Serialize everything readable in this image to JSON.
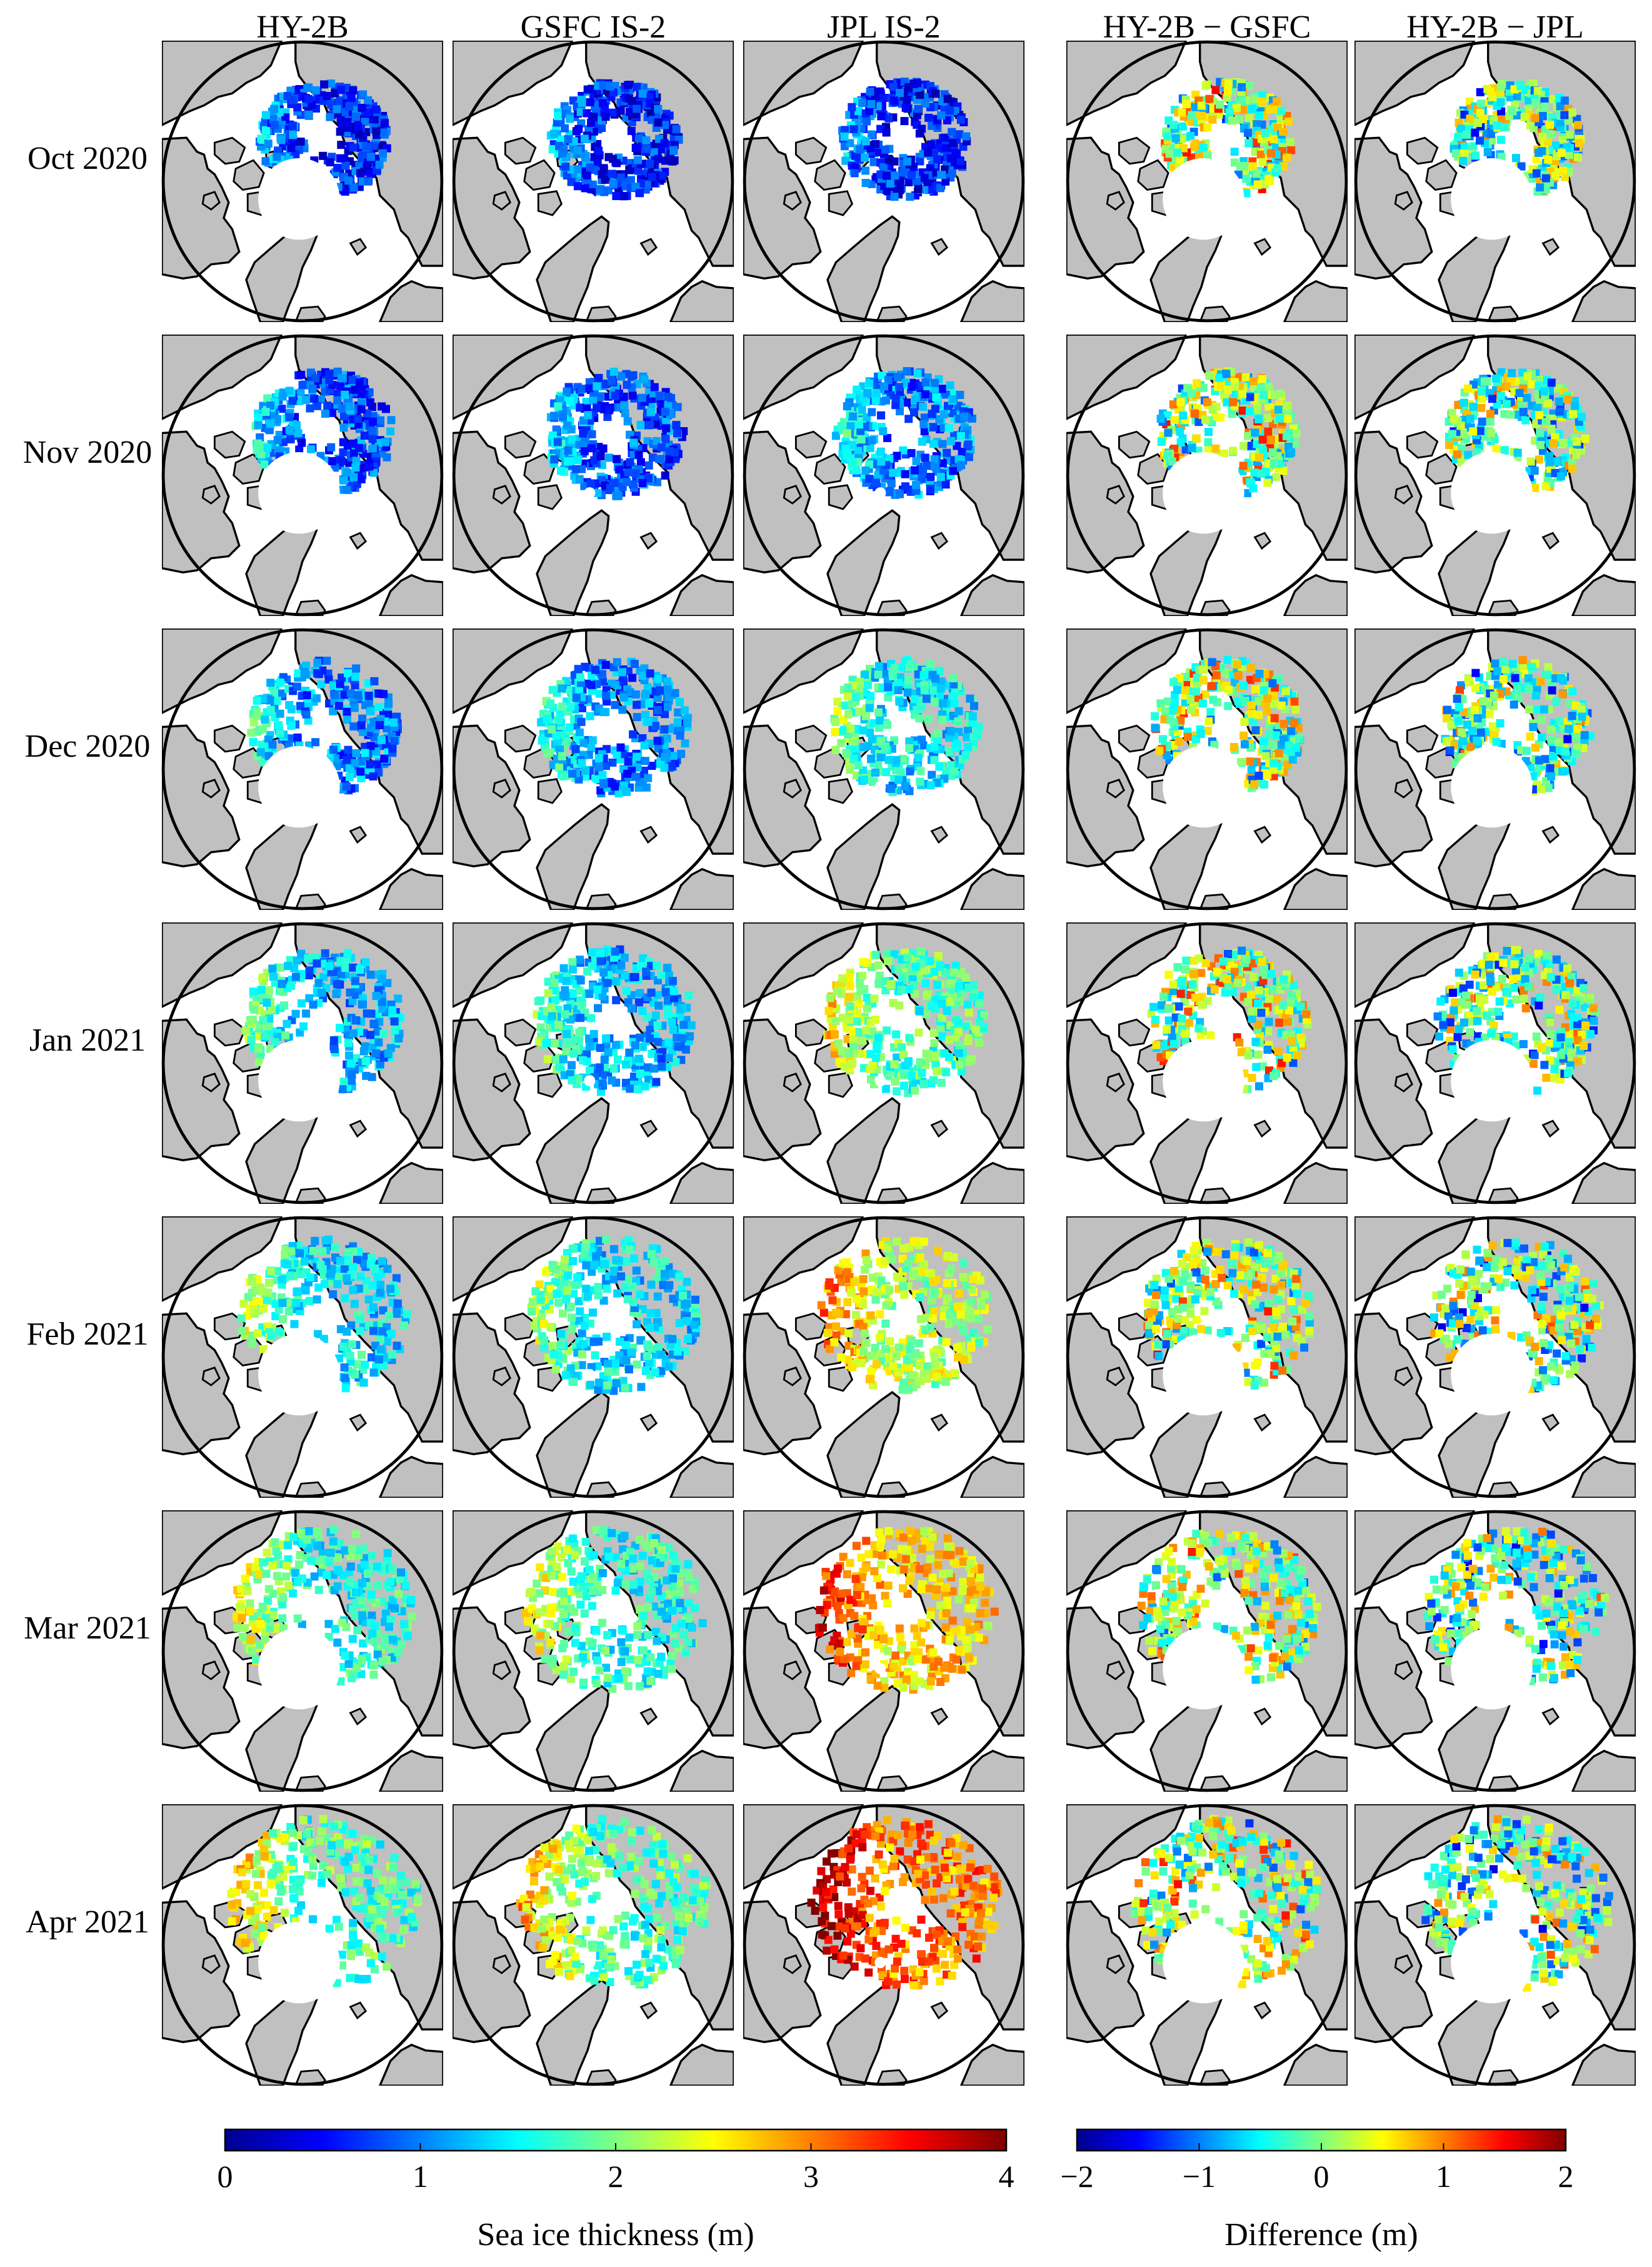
{
  "figure": {
    "columns": [
      "HY-2B",
      "GSFC IS-2",
      "JPL IS-2",
      "HY-2B − GSFC",
      "HY-2B − JPL"
    ],
    "rows": [
      "Oct 2020",
      "Nov 2020",
      "Dec 2020",
      "Jan 2021",
      "Feb 2021",
      "Mar 2021",
      "Apr 2021"
    ]
  },
  "colorbars": {
    "thickness": {
      "label": "Sea ice thickness (m)",
      "ticks": [
        "0",
        "1",
        "2",
        "3",
        "4"
      ],
      "range": [
        0,
        4
      ]
    },
    "difference": {
      "label": "Difference (m)",
      "ticks": [
        "−2",
        "−1",
        "0",
        "1",
        "2"
      ],
      "range": [
        -2,
        2
      ]
    }
  },
  "colors": {
    "land": "#c0c0c0",
    "ocean": "#ffffff",
    "outline": "#000000",
    "colormap": [
      "#00008f",
      "#0000ff",
      "#0080ff",
      "#00ffff",
      "#80ff80",
      "#ffff00",
      "#ff8000",
      "#ff0000",
      "#800000"
    ]
  }
}
